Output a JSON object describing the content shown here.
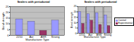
{
  "chart_data": [
    {
      "type": "bar",
      "title": "Sealers with periodontal",
      "x_label": "Manufacturer Type",
      "y_label": "Bond strength",
      "categories": [
        "2210",
        "Aor",
        "ASR",
        "Strong"
      ],
      "values": [
        14,
        12,
        4,
        13
      ],
      "colors": [
        "#9999ff",
        "#9999ff",
        "#993366",
        "#9999ff"
      ],
      "ylim": [
        0,
        25
      ],
      "yticks": [
        0,
        5,
        10,
        15,
        20,
        25
      ],
      "grid": true
    },
    {
      "type": "bar",
      "title": "Sealers with periodontal",
      "x_label": "Manufacturer Type",
      "y_label": "Bond strength",
      "categories": [
        "2210",
        "Aor",
        "ASR",
        "Strong"
      ],
      "series": [
        {
          "name": "Control",
          "color": "#9999ff",
          "values": [
            20,
            18,
            19,
            17
          ]
        },
        {
          "name": "Experimental",
          "color": "#993366",
          "values": [
            9,
            12,
            8,
            7
          ]
        }
      ],
      "ylim": [
        0,
        25
      ],
      "yticks": [
        0,
        5,
        10,
        15,
        20,
        25
      ],
      "grid": true,
      "legend": "right"
    }
  ]
}
